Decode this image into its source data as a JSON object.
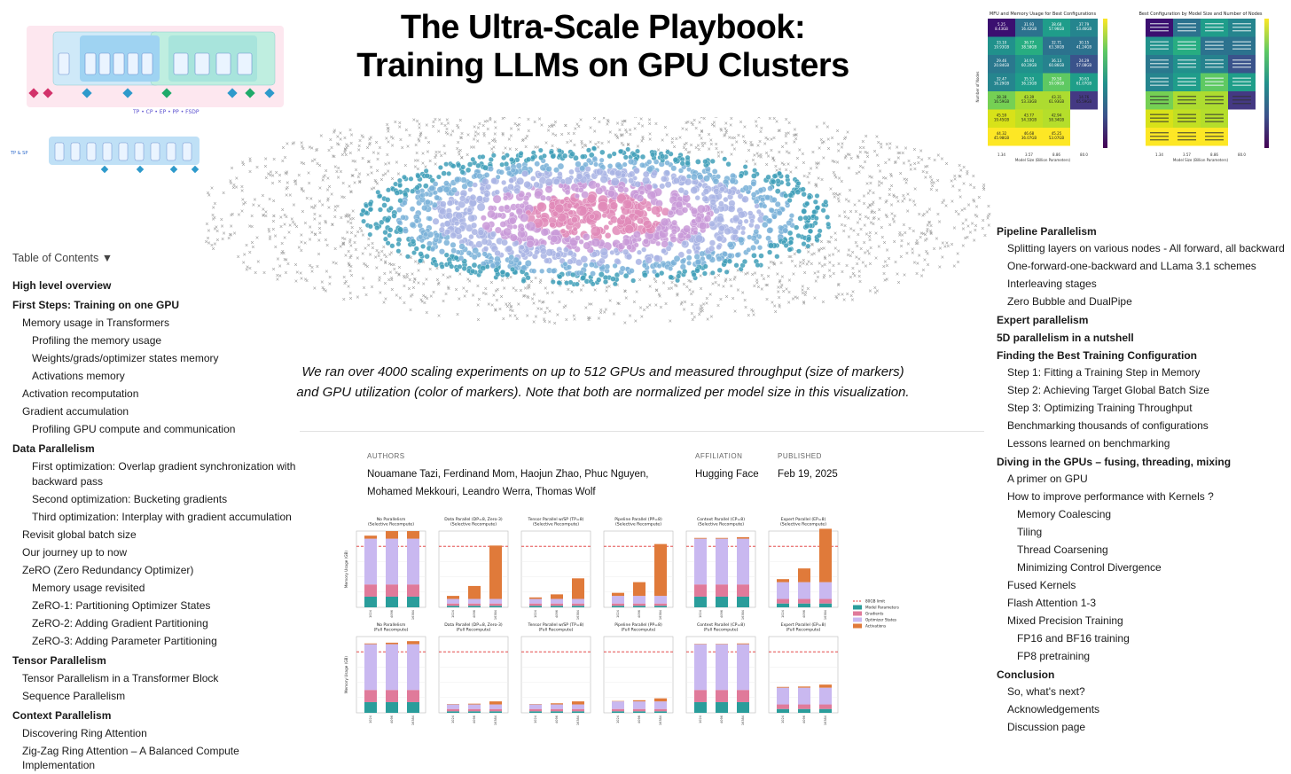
{
  "title_line1": "The Ultra-Scale Playbook:",
  "title_line2": "Training LLMs on GPU Clusters",
  "toc_toggle": "Table of Contents ▼",
  "toc_left": [
    {
      "label": "High level overview",
      "level": 0
    },
    {
      "label": "First Steps: Training on one GPU",
      "level": 0
    },
    {
      "label": "Memory usage in Transformers",
      "level": 1
    },
    {
      "label": "Profiling the memory usage",
      "level": 2
    },
    {
      "label": "Weights/grads/optimizer states memory",
      "level": 2
    },
    {
      "label": "Activations memory",
      "level": 2
    },
    {
      "label": "Activation recomputation",
      "level": 1
    },
    {
      "label": "Gradient accumulation",
      "level": 1
    },
    {
      "label": "Profiling GPU compute and communication",
      "level": 2
    },
    {
      "label": "Data Parallelism",
      "level": 0
    },
    {
      "label": "First optimization: Overlap gradient synchronization with backward pass",
      "level": 2
    },
    {
      "label": "Second optimization: Bucketing gradients",
      "level": 2
    },
    {
      "label": "Third optimization: Interplay with gradient accumulation",
      "level": 2
    },
    {
      "label": "Revisit global batch size",
      "level": 1
    },
    {
      "label": "Our journey up to now",
      "level": 1
    },
    {
      "label": "ZeRO (Zero Redundancy Optimizer)",
      "level": 1
    },
    {
      "label": "Memory usage revisited",
      "level": 2
    },
    {
      "label": "ZeRO-1: Partitioning Optimizer States",
      "level": 2
    },
    {
      "label": "ZeRO-2: Adding Gradient Partitioning",
      "level": 2
    },
    {
      "label": "ZeRO-3: Adding Parameter Partitioning",
      "level": 2
    },
    {
      "label": "Tensor Parallelism",
      "level": 0
    },
    {
      "label": "Tensor Parallelism in a Transformer Block",
      "level": 1
    },
    {
      "label": "Sequence Parallelism",
      "level": 1
    },
    {
      "label": "Context Parallelism",
      "level": 0
    },
    {
      "label": "Discovering Ring Attention",
      "level": 1
    },
    {
      "label": "Zig-Zag Ring Attention – A Balanced Compute Implementation",
      "level": 1
    }
  ],
  "toc_right": [
    {
      "label": "Pipeline Parallelism",
      "level": 0
    },
    {
      "label": "Splitting layers on various nodes - All forward, all backward",
      "level": 1
    },
    {
      "label": "One-forward-one-backward and LLama 3.1 schemes",
      "level": 1
    },
    {
      "label": "Interleaving stages",
      "level": 1
    },
    {
      "label": "Zero Bubble and DualPipe",
      "level": 1
    },
    {
      "label": "Expert parallelism",
      "level": 0
    },
    {
      "label": "5D parallelism in a nutshell",
      "level": 0
    },
    {
      "label": "Finding the Best Training Configuration",
      "level": 0
    },
    {
      "label": "Step 1: Fitting a Training Step in Memory",
      "level": 1
    },
    {
      "label": "Step 2: Achieving Target Global Batch Size",
      "level": 1
    },
    {
      "label": "Step 3: Optimizing Training Throughput",
      "level": 1
    },
    {
      "label": "Benchmarking thousands of configurations",
      "level": 1
    },
    {
      "label": "Lessons learned on benchmarking",
      "level": 1
    },
    {
      "label": "Diving in the GPUs – fusing, threading, mixing",
      "level": 0
    },
    {
      "label": "A primer on GPU",
      "level": 1
    },
    {
      "label": "How to improve performance with Kernels ?",
      "level": 1
    },
    {
      "label": "Memory Coalescing",
      "level": 2
    },
    {
      "label": "Tiling",
      "level": 2
    },
    {
      "label": "Thread Coarsening",
      "level": 2
    },
    {
      "label": "Minimizing Control Divergence",
      "level": 2
    },
    {
      "label": "Fused Kernels",
      "level": 1
    },
    {
      "label": "Flash Attention 1-3",
      "level": 1
    },
    {
      "label": "Mixed Precision Training",
      "level": 1
    },
    {
      "label": "FP16 and BF16 training",
      "level": 2
    },
    {
      "label": "FP8 pretraining",
      "level": 2
    },
    {
      "label": "Conclusion",
      "level": 0
    },
    {
      "label": "So, what's next?",
      "level": 1
    },
    {
      "label": "Acknowledgements",
      "level": 1
    },
    {
      "label": "Discussion page",
      "level": 1
    }
  ],
  "caption": "We ran over 4000 scaling experiments on up to 512 GPUs and measured throughput (size of markers) and GPU utilization (color of markers). Note that both are normalized per model size in this visualization.",
  "meta": {
    "authors_label": "AUTHORS",
    "authors_line1": "Nouamane Tazi, Ferdinand Mom, Haojun Zhao, Phuc Nguyen,",
    "authors_line2": "Mohamed Mekkouri, Leandro Werra, Thomas Wolf",
    "affiliation_label": "AFFILIATION",
    "affiliation": "Hugging Face",
    "published_label": "PUBLISHED",
    "published": "Feb 19, 2025"
  },
  "diagram": {
    "legend": "TP • CP • EP • PP • FSDP",
    "legend2": "TP & SP"
  },
  "heatmaps": {
    "left_title": "MFU and Memory Usage for Best Configurations",
    "right_title": "Best Configuration by Model Size and Number of Nodes",
    "xlabel": "Model Size (Billion Parameters)",
    "ylabel": "Number of Nodes",
    "x_ticks": [
      "1.34",
      "3.57",
      "8.86",
      "80.0"
    ],
    "left_cells": [
      [
        "5.25\n8.43GB",
        "31.93\n16.42GB",
        "38.68\n57.96GB",
        "37.79\n53.46GB"
      ],
      [
        "33.10\n19.93GB",
        "36.77\n38.58GB",
        "32.71\n63.30GB",
        "30.15\n41.24GB"
      ],
      [
        "29.46\n20.84GB",
        "34.93\n60.20GB",
        "36.13\n60.86GB",
        "24.29\n57.08GB"
      ],
      [
        "32.47\n16.29GB",
        "35.53\n36.23GB",
        "39.50\n59.09GB",
        "30.63\n61.07GB"
      ],
      [
        "38.38\n16.59GB",
        "43.39\n53.33GB",
        "43.31\n61.93GB",
        "14.76\n65.59GB"
      ],
      [
        "45.59\n19.45GB",
        "43.77\n54.33GB",
        "42.94\n58.34GB",
        ""
      ],
      [
        "44.32\n45.98GB",
        "46.68\n36.07GB",
        "45.25\n53.07GB",
        ""
      ]
    ],
    "left_colors": [
      [
        "#3b0f70",
        "#2c728e",
        "#1f9d8a",
        "#25858e"
      ],
      [
        "#21918c",
        "#27ad81",
        "#2c728e",
        "#2c728e"
      ],
      [
        "#2a788e",
        "#21918c",
        "#26828e",
        "#3a538b"
      ],
      [
        "#25858e",
        "#1f9d8a",
        "#5ec962",
        "#1f9e89"
      ],
      [
        "#75d054",
        "#addc30",
        "#addc30",
        "#443983"
      ],
      [
        "#d8e219",
        "#c2df23",
        "#b5de2b",
        ""
      ],
      [
        "#fde725",
        "#fde725",
        "#fde725",
        ""
      ]
    ]
  },
  "bar_figure": {
    "panel_titles_top": [
      "No Parallelism\n(Selective Recompute)",
      "Data Parallel (DP=8, Zero-3)\n(Selective Recompute)",
      "Tensor Parallel w/SP (TP=8)\n(Selective Recompute)",
      "Pipeline Parallel (PP=8)\n(Selective Recompute)",
      "Context Parallel (CP=8)\n(Selective Recompute)",
      "Expert Parallel (EP=8)\n(Selective Recompute)"
    ],
    "panel_titles_bottom": [
      "No Parallelism\n(Full Recompute)",
      "Data Parallel (DP=8, Zero-3)\n(Full Recompute)",
      "Tensor Parallel w/SP (TP=8)\n(Full Recompute)",
      "Pipeline Parallel (PP=8)\n(Full Recompute)",
      "Context Parallel (CP=8)\n(Full Recompute)",
      "Expert Parallel (EP=8)\n(Full Recompute)"
    ],
    "ylabel": "Memory Usage (GB)",
    "x_ticks": [
      "1024",
      "4096",
      "16384"
    ],
    "legend": [
      "80GB limit",
      "Model Parameters",
      "Gradients",
      "Optimizer States",
      "Activations"
    ],
    "legend_colors": [
      "#e03030",
      "#2a9d9b",
      "#e07a9a",
      "#c9b8f0",
      "#e07a3a"
    ]
  }
}
